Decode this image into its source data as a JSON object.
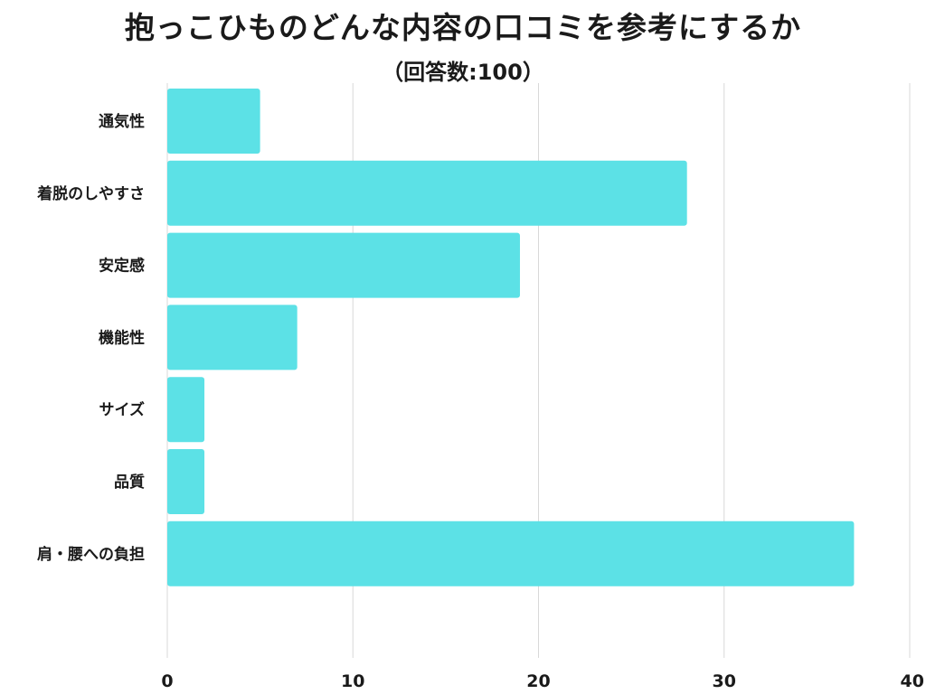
{
  "title": "抱っこひものどんな内容の口コミを参考にするか",
  "subtitle": "（回答数:100）",
  "colors": {
    "bar": "#5ce1e6",
    "grid": "#d8d8d8",
    "text": "#1a1a1a"
  },
  "chart_data": {
    "type": "bar",
    "orientation": "horizontal",
    "title": "抱っこひものどんな内容の口コミを参考にするか",
    "subtitle": "（回答数:100）",
    "categories": [
      "通気性",
      "着脱のしやすさ",
      "安定感",
      "機能性",
      "サイズ",
      "品質",
      "肩・腰への負担"
    ],
    "values": [
      5,
      28,
      19,
      7,
      2,
      2,
      37
    ],
    "xlim": [
      0,
      40
    ],
    "xticks": [
      "0",
      "10",
      "20",
      "30",
      "40"
    ],
    "grid": true
  }
}
